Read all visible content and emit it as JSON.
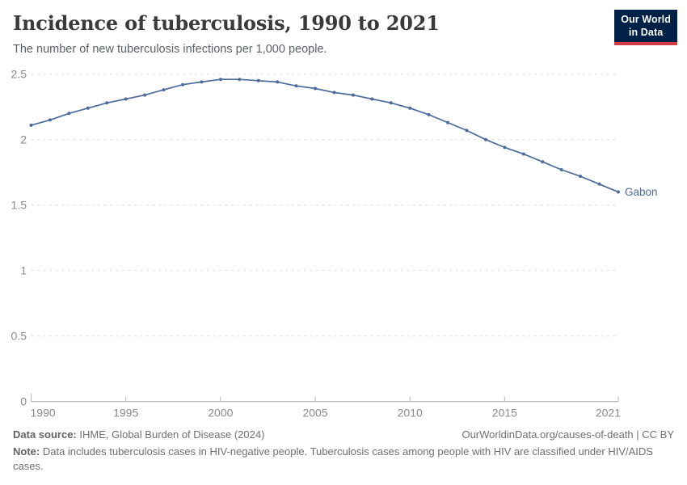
{
  "header": {
    "title": "Incidence of tuberculosis, 1990 to 2021",
    "subtitle": "The number of new tuberculosis infections per 1,000 people.",
    "logo": {
      "line1": "Our World",
      "line2": "in Data",
      "bg_color": "#002147",
      "stripe_color": "#d13d45",
      "text_color": "#ffffff"
    }
  },
  "chart_data": {
    "type": "line",
    "title": "Incidence of tuberculosis, 1990 to 2021",
    "xlabel": "",
    "ylabel": "",
    "xlim": [
      1990,
      2021
    ],
    "ylim": [
      0,
      2.5
    ],
    "x_ticks": [
      1990,
      1995,
      2000,
      2005,
      2010,
      2015,
      2021
    ],
    "y_ticks": [
      0,
      0.5,
      1,
      1.5,
      2,
      2.5
    ],
    "grid": "horizontal-dashed",
    "legend": "line-end-label",
    "series": [
      {
        "name": "Gabon",
        "color": "#4c6a9c",
        "x": [
          1990,
          1991,
          1992,
          1993,
          1994,
          1995,
          1996,
          1997,
          1998,
          1999,
          2000,
          2001,
          2002,
          2003,
          2004,
          2005,
          2006,
          2007,
          2008,
          2009,
          2010,
          2011,
          2012,
          2013,
          2014,
          2015,
          2016,
          2017,
          2018,
          2019,
          2020,
          2021
        ],
        "values": [
          2.11,
          2.15,
          2.2,
          2.24,
          2.28,
          2.31,
          2.34,
          2.38,
          2.42,
          2.44,
          2.46,
          2.46,
          2.45,
          2.44,
          2.41,
          2.39,
          2.36,
          2.34,
          2.31,
          2.28,
          2.24,
          2.19,
          2.13,
          2.07,
          2.0,
          1.94,
          1.89,
          1.83,
          1.77,
          1.72,
          1.66,
          1.6
        ]
      }
    ],
    "style": {
      "grid_color": "#dcdcdc",
      "axis_color": "#a3a3a3",
      "tick_color": "#b5b5b5",
      "tick_label_color": "#8b8b8b"
    }
  },
  "footer": {
    "source_label": "Data source:",
    "source_text": "IHME, Global Burden of Disease (2024)",
    "link_text": "OurWorldinData.org/causes-of-death | CC BY",
    "note_label": "Note:",
    "note_text": "Data includes tuberculosis cases in HIV-negative people. Tuberculosis cases among people with HIV are classified under HIV/AIDS cases."
  }
}
